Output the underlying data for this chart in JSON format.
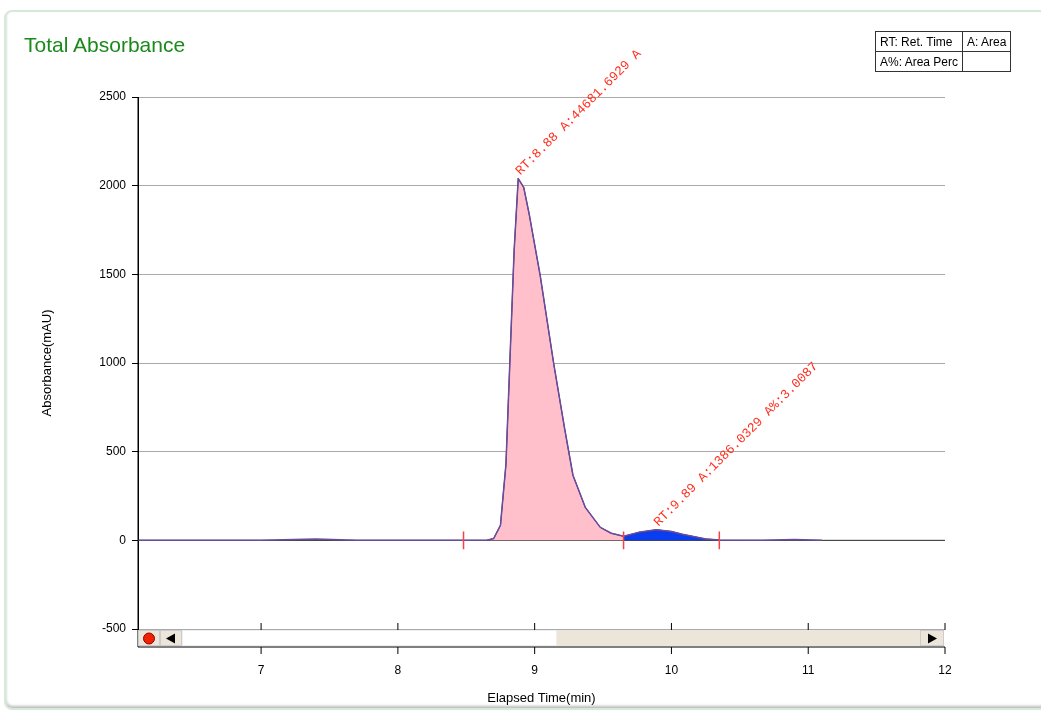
{
  "chart_data": {
    "type": "line",
    "title": "Total Absorbance",
    "xlabel": "Elapsed Time(min)",
    "ylabel": "Absorbance(mAU)",
    "xlim": [
      6.1,
      12
    ],
    "xticks": [
      7,
      8,
      9,
      10,
      11,
      12
    ],
    "ylim": [
      -500,
      2500
    ],
    "yticks": [
      -500,
      0,
      500,
      1000,
      1500,
      2000,
      2500
    ],
    "grid": "y",
    "legend": false,
    "marker": "none",
    "series": [
      {
        "type": "area",
        "color": "#ffc0cb",
        "x": [
          8.65,
          8.7,
          8.75,
          8.79,
          8.82,
          8.85,
          8.88,
          8.92,
          8.96,
          9.04,
          9.14,
          9.22,
          9.28,
          9.37,
          9.48,
          9.56,
          9.65
        ],
        "values": [
          0,
          10,
          85,
          428,
          1032,
          1636,
          2040,
          1990,
          1839,
          1495,
          993,
          626,
          367,
          186,
          73,
          40,
          23
        ]
      },
      {
        "type": "area",
        "color": "#0a3cf0",
        "x": [
          9.65,
          9.76,
          9.89,
          10,
          10.08,
          10.25,
          10.35
        ],
        "values": [
          23,
          45,
          60,
          50,
          34,
          8,
          2
        ]
      },
      {
        "color": "#ff4040",
        "x": [
          8.48,
          8.48
        ],
        "values": [
          -50,
          50
        ]
      },
      {
        "color": "#ff4040",
        "x": [
          9.65,
          9.65
        ],
        "values": [
          -50,
          50
        ]
      },
      {
        "color": "#ff4040",
        "x": [
          10.35,
          10.35
        ],
        "values": [
          -50,
          50
        ]
      },
      {
        "color": "#6a4c9c",
        "x": [
          6.1,
          6.5,
          7,
          7.4,
          7.7,
          8,
          8.5,
          8.65,
          8.7,
          8.75,
          8.79,
          8.82,
          8.85,
          8.88,
          8.92,
          8.96,
          9.04,
          9.14,
          9.22,
          9.28,
          9.37,
          9.48,
          9.56,
          9.65,
          9.76,
          9.89,
          10,
          10.08,
          10.25,
          10.35,
          10.6,
          10.9,
          11.1
        ],
        "values": [
          0,
          0,
          0,
          8,
          0,
          0,
          0,
          0,
          10,
          85,
          428,
          1032,
          1636,
          2040,
          1990,
          1839,
          1495,
          993,
          626,
          367,
          186,
          73,
          40,
          23,
          45,
          60,
          50,
          34,
          8,
          2,
          0,
          4,
          0
        ]
      }
    ],
    "annotations": [
      {
        "text": "RT:8.88 A:44681.6929 A",
        "x": 8.88,
        "y": 2040
      },
      {
        "text": "RT:9.89 A:1386.0329 A%:3.0087",
        "x": 9.89,
        "y": 60
      },
      "RT: Ret. Time",
      "A: Area",
      "A%: Area Perc"
    ]
  }
}
